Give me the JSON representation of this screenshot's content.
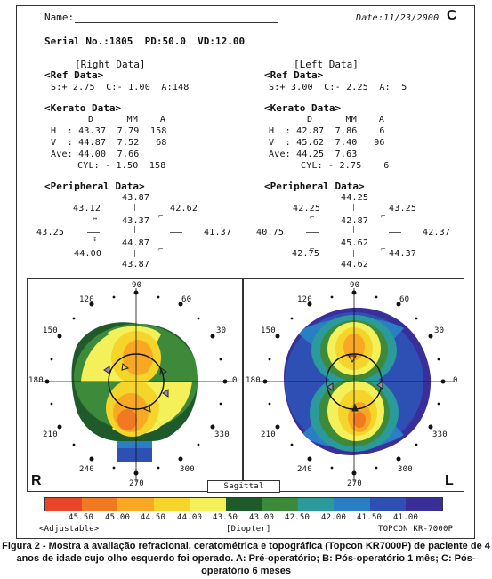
{
  "header": {
    "name_label": "Name:",
    "date": "Date:11/23/2000",
    "figure_letter": "C",
    "serial": "Serial No.:1805  PD:50.0  VD:12.00"
  },
  "right": {
    "title": "[Right Data]",
    "ref_title": "<Ref Data>",
    "ref_line": "S:+ 2.75  C:- 1.00  A:148",
    "kerato_title": "<Kerato Data>",
    "kerato_head": "D      MM    A",
    "h": "H  : 43.37  7.79  158",
    "v": "V  : 44.87  7.52   68",
    "ave": "Ave: 44.00  7.66",
    "cyl": "CYL: - 1.50  158",
    "periph_title": "<Peripheral Data>",
    "p_top": "43.87",
    "p_ul": "43.12",
    "p_ur": "42.62",
    "p_left": "43.25",
    "p_center": "43.37",
    "p_right": "41.37",
    "p_lower": "44.87",
    "p_ll": "44.00",
    "p_bottom": "43.87"
  },
  "left": {
    "title": "[Left Data]",
    "ref_title": "<Ref Data>",
    "ref_line": "S:+ 3.00  C:- 2.25  A:  5",
    "kerato_title": "<Kerato Data>",
    "kerato_head": "D      MM    A",
    "h": "H  : 42.87  7.86    6",
    "v": "V  : 45.62  7.40   96",
    "ave": "Ave: 44.25  7.63",
    "cyl": "CYL: - 2.75    6",
    "periph_title": "<Peripheral Data>",
    "p_top": "44.25",
    "p_ul": "42.25",
    "p_ur": "43.25",
    "p_left": "40.75",
    "p_center": "42.87",
    "p_right": "42.37",
    "p_lower": "45.62",
    "p_ll": "42.75",
    "p_lr": "44.37",
    "p_bottom": "44.62"
  },
  "maps": {
    "right_letter": "R",
    "left_letter": "L",
    "mode": "Sagittal",
    "angles": [
      "90",
      "60",
      "30",
      "0",
      "330",
      "300",
      "270",
      "240",
      "210",
      "180",
      "150",
      "120"
    ]
  },
  "scale": {
    "colors": [
      "#e8452a",
      "#f07a22",
      "#f9a824",
      "#f6d52b",
      "#f3f05a",
      "#1f5a2a",
      "#3d8a3a",
      "#2a9a9a",
      "#2a7fc4",
      "#2e4fb4",
      "#3a2f98"
    ],
    "labels": [
      "45.50",
      "45.00",
      "44.50",
      "44.00",
      "43.50",
      "43.00",
      "42.50",
      "42.00",
      "41.50",
      "41.00"
    ],
    "adjustable": "<Adjustable>",
    "unit": "[Diopter]",
    "device": "TOPCON KR-7000P"
  },
  "caption": "Figura 2 - Mostra a avaliação refracional, ceratométrica e topográfica (Topcon KR7000P) de paciente de 4 anos de idade cujo olho esquerdo foi operado. A: Pré-operatório; B: Pós-operatório 1 mês; C: Pós-operatório 6 meses"
}
